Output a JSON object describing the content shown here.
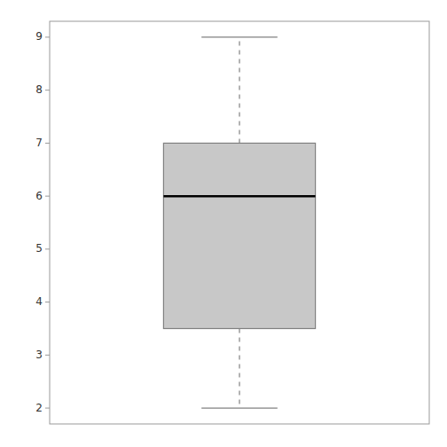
{
  "chart_data": {
    "type": "box",
    "whisker_low": 2.0,
    "q1": 3.5,
    "median": 6.0,
    "q3": 7.0,
    "whisker_high": 9.0,
    "color": "#c8c8c8",
    "ylim": [
      1.7,
      9.3
    ],
    "yticks": [
      2,
      3,
      4,
      5,
      6,
      7,
      8,
      9
    ],
    "grid": false,
    "tick_labels": "y"
  }
}
